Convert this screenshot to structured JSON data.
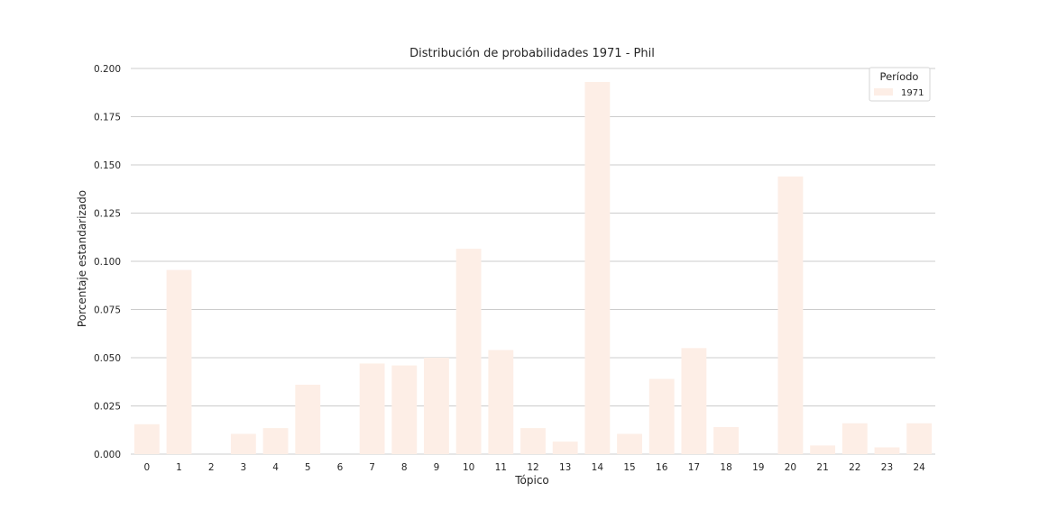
{
  "chart_data": {
    "type": "bar",
    "title": "Distribución de probabilidades 1971 - Phil",
    "xlabel": "Tópico",
    "ylabel": "Porcentaje estandarizado",
    "categories": [
      "0",
      "1",
      "2",
      "3",
      "4",
      "5",
      "6",
      "7",
      "8",
      "9",
      "10",
      "11",
      "12",
      "13",
      "14",
      "15",
      "16",
      "17",
      "18",
      "19",
      "20",
      "21",
      "22",
      "23",
      "24"
    ],
    "series": [
      {
        "name": "1971",
        "values": [
          0.0155,
          0.0955,
          0.0,
          0.0105,
          0.0135,
          0.036,
          0.0,
          0.047,
          0.046,
          0.05,
          0.1065,
          0.054,
          0.0135,
          0.0065,
          0.193,
          0.0105,
          0.039,
          0.055,
          0.014,
          0.0,
          0.144,
          0.0045,
          0.016,
          0.0035,
          0.016
        ]
      }
    ],
    "ylim": [
      0,
      0.2
    ],
    "yticks": [
      "0.000",
      "0.025",
      "0.050",
      "0.075",
      "0.100",
      "0.125",
      "0.150",
      "0.175",
      "0.200"
    ],
    "ytick_values": [
      0,
      0.025,
      0.05,
      0.075,
      0.1,
      0.125,
      0.15,
      0.175,
      0.2
    ],
    "grid": "horizontal",
    "legend": {
      "title": "Período",
      "placement": "top-right"
    },
    "colors": {
      "bar": "#fdeee6",
      "grid": "#cccccc",
      "text": "#262626"
    }
  }
}
